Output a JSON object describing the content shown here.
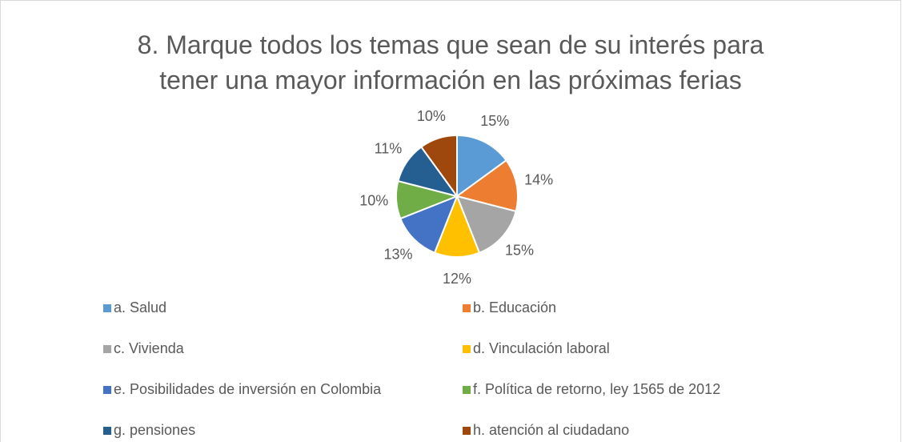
{
  "chart_data": {
    "type": "pie",
    "title": "8. Marque todos los temas que sean de su interés para tener una mayor información en las próximas ferias",
    "categories": [
      "a. Salud",
      "b. Educación",
      "c. Vivienda",
      "d. Vinculación laboral",
      "e. Posibilidades de inversión en Colombia",
      "f. Política de retorno, ley 1565 de 2012",
      "g. pensiones",
      "h. atención al ciudadano"
    ],
    "values": [
      15,
      14,
      15,
      12,
      13,
      10,
      11,
      10
    ],
    "value_labels": [
      "15%",
      "14%",
      "15%",
      "12%",
      "13%",
      "10%",
      "11%",
      "10%"
    ],
    "colors": [
      "#5b9bd5",
      "#ed7d31",
      "#a5a5a5",
      "#ffc000",
      "#4472c4",
      "#70ad47",
      "#255e91",
      "#9e480e"
    ],
    "legend": "bottom"
  }
}
